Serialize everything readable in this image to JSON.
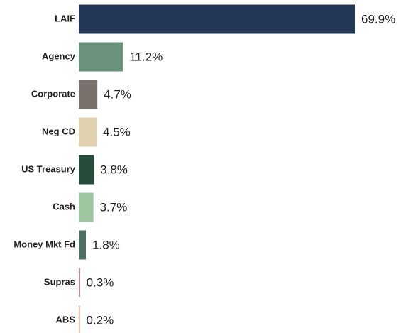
{
  "chart_data": {
    "type": "bar",
    "orientation": "horizontal",
    "categories": [
      "LAIF",
      "Agency",
      "Corporate",
      "Neg CD",
      "US Treasury",
      "Cash",
      "Money Mkt Fd",
      "Supras",
      "ABS"
    ],
    "values": [
      69.9,
      11.2,
      4.7,
      4.5,
      3.8,
      3.7,
      1.8,
      0.3,
      0.2
    ],
    "value_labels": [
      "69.9%",
      "11.2%",
      "4.7%",
      "4.5%",
      "3.8%",
      "3.7%",
      "1.8%",
      "0.3%",
      "0.2%"
    ],
    "colors": [
      "#233756",
      "#6a917c",
      "#7a716d",
      "#e0d0ae",
      "#254c38",
      "#9cc5a0",
      "#4e7060",
      "#a2476b",
      "#e2845a"
    ]
  }
}
